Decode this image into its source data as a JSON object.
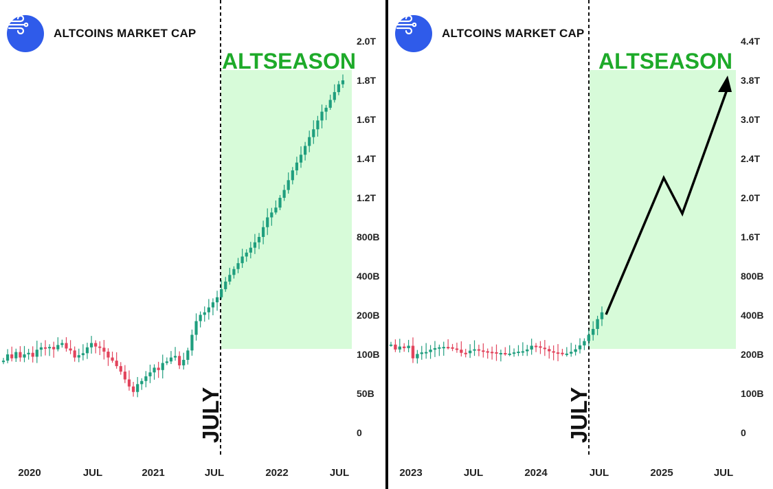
{
  "colors": {
    "up": "#1f9e7e",
    "down": "#e2445c",
    "altseason_fill": "#d7fbd9",
    "altseason_text": "#1eaa2a",
    "logo": "#2f5bea",
    "arrow": "#000000"
  },
  "icons": {
    "logo": "wind-icon"
  },
  "chart_data": [
    {
      "type": "candlestick",
      "title": "ALTCOINS MARKET CAP",
      "annotations": {
        "zone_label": "ALTSEASON",
        "event_label": "JULY"
      },
      "y_ticks": [
        "2.0T",
        "1.8T",
        "1.6T",
        "1.4T",
        "1.2T",
        "800B",
        "400B",
        "200B",
        "100B",
        "50B",
        "0"
      ],
      "x_ticks": [
        "2020",
        "JUL",
        "2021",
        "JUL",
        "2022",
        "JUL"
      ],
      "series_close": [
        92,
        100,
        95,
        106,
        96,
        100,
        104,
        97,
        112,
        118,
        116,
        119,
        113,
        124,
        129,
        115,
        110,
        96,
        99,
        103,
        118,
        129,
        120,
        117,
        107,
        96,
        92,
        85,
        78,
        68,
        59,
        52,
        62,
        66,
        72,
        77,
        83,
        80,
        89,
        91,
        96,
        98,
        86,
        93,
        110,
        150,
        185,
        202,
        215,
        240,
        266,
        292,
        333,
        372,
        412,
        472,
        532,
        600,
        640,
        690,
        745,
        800,
        900,
        1000,
        1050,
        1100,
        1200,
        1240,
        1290,
        1340,
        1380,
        1420,
        1465,
        1510,
        1550,
        1595,
        1640,
        1660,
        1700,
        1740,
        1780,
        1800
      ]
    },
    {
      "type": "candlestick",
      "title": "ALTCOINS MARKET CAP",
      "annotations": {
        "zone_label": "ALTSEASON",
        "event_label": "JULY",
        "projection": "arrow"
      },
      "y_ticks": [
        "4.4T",
        "3.8T",
        "3.0T",
        "2.4T",
        "2.0T",
        "1.6T",
        "800B",
        "400B",
        "200B",
        "100B",
        "0"
      ],
      "x_ticks": [
        "2023",
        "JUL",
        "2024",
        "JUL",
        "2025",
        "JUL"
      ],
      "series_close": [
        250,
        225,
        240,
        232,
        244,
        190,
        202,
        210,
        212,
        224,
        232,
        236,
        238,
        236,
        230,
        224,
        208,
        206,
        219,
        226,
        220,
        216,
        213,
        211,
        207,
        207,
        204,
        204,
        210,
        214,
        216,
        225,
        244,
        241,
        234,
        227,
        216,
        210,
        208,
        202,
        204,
        213,
        226,
        246,
        268,
        300,
        330,
        380,
        430
      ],
      "projection_path": [
        {
          "x": "JUL",
          "y": "400B"
        },
        {
          "x": "2025",
          "y": "2.3T"
        },
        {
          "x": "2025",
          "y": "1.85T"
        },
        {
          "x": "JUL",
          "y": "3.9T"
        }
      ]
    }
  ]
}
